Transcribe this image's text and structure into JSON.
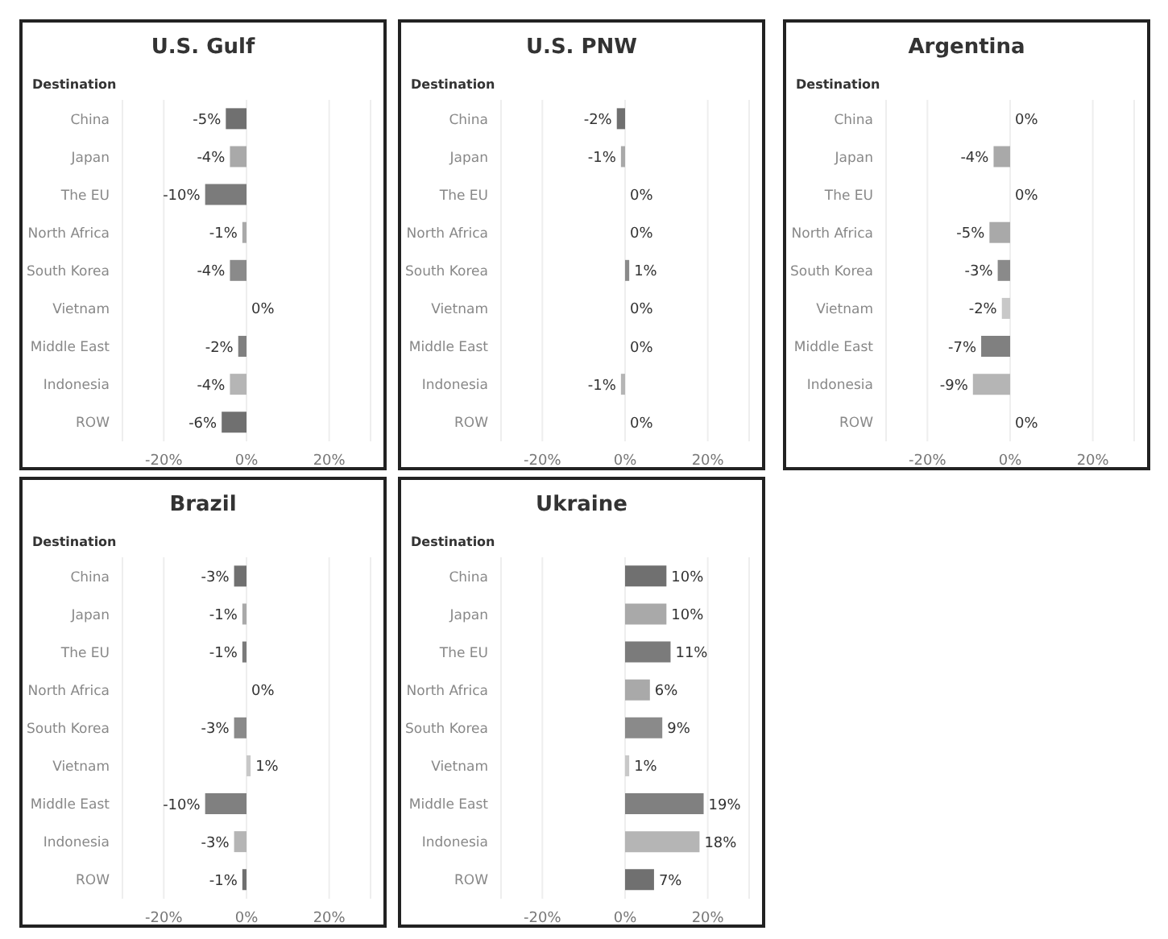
{
  "chart_data": [
    {
      "type": "bar",
      "orientation": "horizontal",
      "title": "U.S. Gulf",
      "ylabel": "Destination",
      "categories": [
        "China",
        "Japan",
        "The EU",
        "North Africa",
        "South Korea",
        "Vietnam",
        "Middle East",
        "Indonesia",
        "ROW"
      ],
      "values": [
        -5,
        -4,
        -10,
        -1,
        -4,
        0,
        -2,
        -4,
        -6
      ],
      "value_labels": [
        "-5%",
        "-4%",
        "-10%",
        "-1%",
        "-4%",
        "0%",
        "-2%",
        "-4%",
        "-6%"
      ],
      "colors": [
        "#707070",
        "#a9a9a9",
        "#7b7b7b",
        "#a9a9a9",
        "#8a8a8a",
        "#c8c8c8",
        "#808080",
        "#b5b5b5",
        "#707070"
      ],
      "xlim": [
        -30,
        30
      ],
      "xticks": [
        {
          "value": -20,
          "label": "-20%"
        },
        {
          "value": 0,
          "label": "0%"
        },
        {
          "value": 20,
          "label": "20%"
        }
      ],
      "grid": "x"
    },
    {
      "type": "bar",
      "orientation": "horizontal",
      "title": "U.S. PNW",
      "ylabel": "Destination",
      "categories": [
        "China",
        "Japan",
        "The EU",
        "North Africa",
        "South Korea",
        "Vietnam",
        "Middle East",
        "Indonesia",
        "ROW"
      ],
      "values": [
        -2,
        -1,
        0,
        0,
        1,
        0,
        0,
        -1,
        0
      ],
      "value_labels": [
        "-2%",
        "-1%",
        "0%",
        "0%",
        "1%",
        "0%",
        "0%",
        "-1%",
        "0%"
      ],
      "colors": [
        "#707070",
        "#a9a9a9",
        "#7b7b7b",
        "#a9a9a9",
        "#8a8a8a",
        "#c8c8c8",
        "#808080",
        "#b5b5b5",
        "#707070"
      ],
      "xlim": [
        -30,
        30
      ],
      "xticks": [
        {
          "value": -20,
          "label": "-20%"
        },
        {
          "value": 0,
          "label": "0%"
        },
        {
          "value": 20,
          "label": "20%"
        }
      ],
      "grid": "x"
    },
    {
      "type": "bar",
      "orientation": "horizontal",
      "title": "Argentina",
      "ylabel": "Destination",
      "categories": [
        "China",
        "Japan",
        "The EU",
        "North Africa",
        "South Korea",
        "Vietnam",
        "Middle East",
        "Indonesia",
        "ROW"
      ],
      "values": [
        0,
        -4,
        0,
        -5,
        -3,
        -2,
        -7,
        -9,
        0
      ],
      "value_labels": [
        "0%",
        "-4%",
        "0%",
        "-5%",
        "-3%",
        "-2%",
        "-7%",
        "-9%",
        "0%"
      ],
      "colors": [
        "#707070",
        "#a9a9a9",
        "#7b7b7b",
        "#a9a9a9",
        "#8a8a8a",
        "#c8c8c8",
        "#808080",
        "#b5b5b5",
        "#707070"
      ],
      "xlim": [
        -30,
        30
      ],
      "xticks": [
        {
          "value": -20,
          "label": "-20%"
        },
        {
          "value": 0,
          "label": "0%"
        },
        {
          "value": 20,
          "label": "20%"
        }
      ],
      "grid": "x"
    },
    {
      "type": "bar",
      "orientation": "horizontal",
      "title": "Brazil",
      "ylabel": "Destination",
      "categories": [
        "China",
        "Japan",
        "The EU",
        "North Africa",
        "South Korea",
        "Vietnam",
        "Middle East",
        "Indonesia",
        "ROW"
      ],
      "values": [
        -3,
        -1,
        -1,
        0,
        -3,
        1,
        -10,
        -3,
        -1
      ],
      "value_labels": [
        "-3%",
        "-1%",
        "-1%",
        "0%",
        "-3%",
        "1%",
        "-10%",
        "-3%",
        "-1%"
      ],
      "colors": [
        "#707070",
        "#a9a9a9",
        "#7b7b7b",
        "#a9a9a9",
        "#8a8a8a",
        "#c8c8c8",
        "#808080",
        "#b5b5b5",
        "#707070"
      ],
      "xlim": [
        -30,
        30
      ],
      "xticks": [
        {
          "value": -20,
          "label": "-20%"
        },
        {
          "value": 0,
          "label": "0%"
        },
        {
          "value": 20,
          "label": "20%"
        }
      ],
      "grid": "x"
    },
    {
      "type": "bar",
      "orientation": "horizontal",
      "title": "Ukraine",
      "ylabel": "Destination",
      "categories": [
        "China",
        "Japan",
        "The EU",
        "North Africa",
        "South Korea",
        "Vietnam",
        "Middle East",
        "Indonesia",
        "ROW"
      ],
      "values": [
        10,
        10,
        11,
        6,
        9,
        1,
        19,
        18,
        7
      ],
      "value_labels": [
        "10%",
        "10%",
        "11%",
        "6%",
        "9%",
        "1%",
        "19%",
        "18%",
        "7%"
      ],
      "colors": [
        "#707070",
        "#a9a9a9",
        "#7b7b7b",
        "#a9a9a9",
        "#8a8a8a",
        "#c8c8c8",
        "#808080",
        "#b5b5b5",
        "#707070"
      ],
      "xlim": [
        -30,
        30
      ],
      "xticks": [
        {
          "value": -20,
          "label": "-20%"
        },
        {
          "value": 0,
          "label": "0%"
        },
        {
          "value": 20,
          "label": "20%"
        }
      ],
      "grid": "x"
    }
  ]
}
